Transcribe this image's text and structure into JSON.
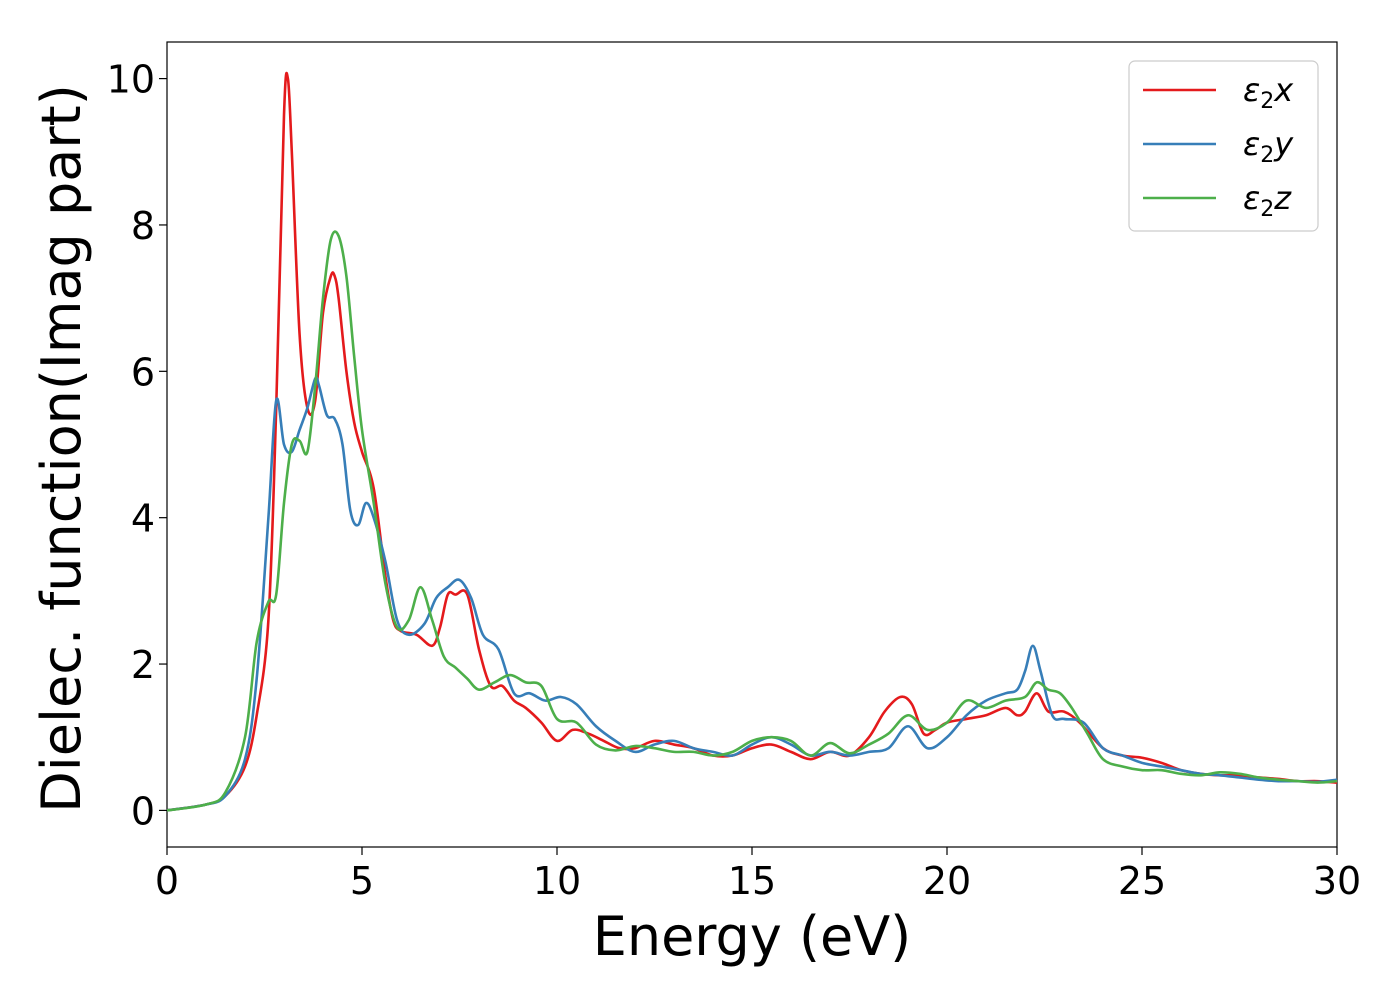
{
  "chart_data": {
    "type": "line",
    "xlabel": "Energy (eV)",
    "ylabel": "Dielec. function(Imag part)",
    "xlim": [
      0,
      30
    ],
    "ylim": [
      -0.5,
      10.5
    ],
    "xticks": [
      "0",
      "5",
      "10",
      "15",
      "20",
      "25",
      "30"
    ],
    "yticks": [
      "0",
      "2",
      "4",
      "6",
      "8",
      "10"
    ],
    "legend_position": "top-right",
    "grid": false,
    "series": [
      {
        "name": "ε₂x",
        "legend": {
          "symbol": "ε",
          "sub": "2",
          "axis": "x"
        },
        "color": "#e41a1c",
        "x": [
          0,
          1,
          1.5,
          2,
          2.3,
          2.6,
          2.8,
          3.0,
          3.1,
          3.2,
          3.4,
          3.6,
          3.8,
          4.0,
          4.2,
          4.3,
          4.4,
          4.6,
          4.8,
          5.0,
          5.3,
          5.6,
          5.8,
          6.0,
          6.4,
          6.8,
          7.0,
          7.2,
          7.4,
          7.7,
          8.0,
          8.3,
          8.6,
          8.9,
          9.2,
          9.6,
          10.0,
          10.4,
          10.8,
          11.2,
          11.6,
          12.0,
          12.5,
          13.0,
          13.5,
          14.0,
          14.5,
          15.0,
          15.5,
          16.0,
          16.5,
          17.0,
          17.5,
          18.0,
          18.4,
          18.8,
          19.1,
          19.4,
          19.7,
          20.0,
          20.5,
          21.0,
          21.5,
          21.8,
          22.0,
          22.3,
          22.6,
          23.0,
          23.4,
          24.0,
          24.5,
          25.0,
          25.5,
          26.0,
          26.5,
          27.0,
          27.5,
          28.0,
          28.5,
          29.0,
          29.5,
          30.0
        ],
        "values": [
          0,
          0.08,
          0.2,
          0.6,
          1.3,
          2.6,
          5.5,
          9.5,
          10.0,
          9.0,
          6.5,
          5.5,
          5.6,
          6.8,
          7.3,
          7.3,
          7.0,
          6.0,
          5.3,
          4.9,
          4.4,
          3.2,
          2.6,
          2.45,
          2.4,
          2.25,
          2.5,
          2.95,
          2.95,
          2.95,
          2.2,
          1.7,
          1.7,
          1.5,
          1.4,
          1.2,
          0.95,
          1.1,
          1.05,
          0.95,
          0.85,
          0.85,
          0.95,
          0.9,
          0.85,
          0.75,
          0.75,
          0.85,
          0.9,
          0.8,
          0.7,
          0.8,
          0.75,
          1.0,
          1.35,
          1.55,
          1.45,
          1.05,
          1.1,
          1.2,
          1.25,
          1.3,
          1.4,
          1.3,
          1.35,
          1.6,
          1.35,
          1.35,
          1.2,
          0.85,
          0.75,
          0.72,
          0.65,
          0.55,
          0.5,
          0.48,
          0.48,
          0.45,
          0.43,
          0.4,
          0.4,
          0.38
        ]
      },
      {
        "name": "ε₂y",
        "legend": {
          "symbol": "ε",
          "sub": "2",
          "axis": "y"
        },
        "color": "#377eb8",
        "x": [
          0,
          1,
          1.5,
          2,
          2.3,
          2.6,
          2.8,
          3.0,
          3.2,
          3.4,
          3.6,
          3.8,
          3.9,
          4.1,
          4.3,
          4.5,
          4.7,
          4.9,
          5.1,
          5.3,
          5.6,
          5.9,
          6.2,
          6.6,
          6.9,
          7.2,
          7.5,
          7.8,
          8.1,
          8.5,
          8.9,
          9.3,
          9.7,
          10.1,
          10.5,
          11.0,
          11.5,
          12.0,
          12.5,
          13.0,
          13.5,
          14.0,
          14.5,
          15.0,
          15.5,
          16.0,
          16.5,
          17.0,
          17.5,
          18.0,
          18.5,
          19.0,
          19.5,
          20.0,
          20.5,
          21.0,
          21.5,
          21.8,
          22.0,
          22.2,
          22.4,
          22.7,
          23.0,
          23.5,
          24.0,
          24.5,
          25.0,
          25.5,
          26.0,
          26.5,
          27.0,
          27.5,
          28.0,
          28.5,
          29.0,
          29.5,
          30.0
        ],
        "values": [
          0,
          0.08,
          0.2,
          0.7,
          1.8,
          4.0,
          5.6,
          5.0,
          4.9,
          5.2,
          5.5,
          5.9,
          5.8,
          5.4,
          5.35,
          5.0,
          4.1,
          3.9,
          4.2,
          4.0,
          3.4,
          2.6,
          2.4,
          2.55,
          2.9,
          3.05,
          3.15,
          2.9,
          2.4,
          2.2,
          1.6,
          1.6,
          1.5,
          1.55,
          1.45,
          1.15,
          0.95,
          0.8,
          0.9,
          0.95,
          0.85,
          0.8,
          0.75,
          0.9,
          1.0,
          0.9,
          0.75,
          0.8,
          0.75,
          0.8,
          0.85,
          1.15,
          0.85,
          1.0,
          1.3,
          1.5,
          1.6,
          1.65,
          1.9,
          2.25,
          1.9,
          1.3,
          1.25,
          1.2,
          0.85,
          0.75,
          0.65,
          0.6,
          0.55,
          0.5,
          0.48,
          0.45,
          0.42,
          0.4,
          0.4,
          0.39,
          0.42
        ]
      },
      {
        "name": "ε₂z",
        "legend": {
          "symbol": "ε",
          "sub": "2",
          "axis": "z"
        },
        "color": "#4daf4a",
        "x": [
          0,
          1,
          1.5,
          2,
          2.3,
          2.6,
          2.8,
          3.0,
          3.2,
          3.4,
          3.6,
          3.8,
          4.0,
          4.2,
          4.4,
          4.6,
          4.8,
          5.0,
          5.3,
          5.6,
          5.9,
          6.2,
          6.5,
          6.8,
          7.1,
          7.4,
          7.7,
          8.0,
          8.4,
          8.8,
          9.2,
          9.6,
          10.0,
          10.5,
          11.0,
          11.5,
          12.0,
          12.5,
          13.0,
          13.5,
          14.0,
          14.5,
          15.0,
          15.5,
          16.0,
          16.5,
          17.0,
          17.5,
          18.0,
          18.5,
          19.0,
          19.5,
          20.0,
          20.5,
          21.0,
          21.5,
          22.0,
          22.3,
          22.6,
          22.9,
          23.2,
          23.6,
          24.0,
          24.5,
          25.0,
          25.5,
          26.0,
          26.5,
          27.0,
          27.5,
          28.0,
          28.5,
          29.0,
          29.5,
          30.0
        ],
        "values": [
          0,
          0.08,
          0.25,
          1.0,
          2.3,
          2.85,
          2.95,
          4.2,
          5.0,
          5.05,
          4.9,
          5.8,
          7.0,
          7.8,
          7.85,
          7.3,
          6.2,
          5.2,
          4.2,
          3.1,
          2.5,
          2.6,
          3.05,
          2.6,
          2.1,
          1.95,
          1.8,
          1.65,
          1.75,
          1.85,
          1.75,
          1.7,
          1.25,
          1.2,
          0.9,
          0.82,
          0.88,
          0.85,
          0.8,
          0.8,
          0.75,
          0.8,
          0.95,
          1.0,
          0.95,
          0.75,
          0.92,
          0.78,
          0.9,
          1.05,
          1.3,
          1.1,
          1.2,
          1.5,
          1.4,
          1.5,
          1.55,
          1.75,
          1.65,
          1.6,
          1.4,
          1.05,
          0.7,
          0.6,
          0.55,
          0.55,
          0.5,
          0.48,
          0.52,
          0.5,
          0.45,
          0.42,
          0.4,
          0.38,
          0.4
        ]
      }
    ]
  }
}
